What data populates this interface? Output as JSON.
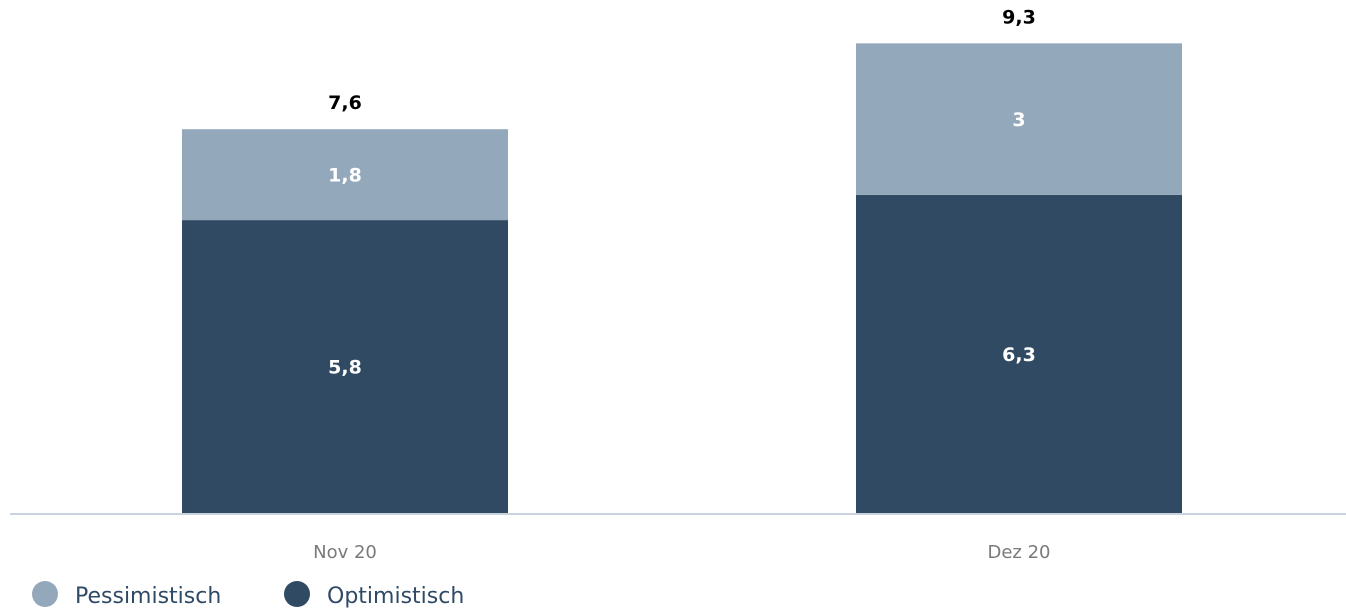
{
  "chart_data": {
    "type": "bar",
    "stacked": true,
    "categories": [
      "Nov 20",
      "Dez 20"
    ],
    "series": [
      {
        "name": "Optimistisch",
        "values": [
          "5,8",
          "6,3"
        ],
        "numeric": [
          5.8,
          6.3
        ],
        "color": "#304a64"
      },
      {
        "name": "Pessimistisch",
        "values": [
          "1,8",
          "3"
        ],
        "numeric": [
          1.8,
          3.0
        ],
        "color": "#94a8bb"
      }
    ],
    "totals": [
      "7,6",
      "9,3"
    ],
    "totals_numeric": [
      7.6,
      9.3
    ],
    "ylim": [
      0,
      10
    ],
    "grid": false,
    "legend": {
      "placement": "bottom-left",
      "items": [
        {
          "label": "Pessimistisch",
          "color": "#94a8bb"
        },
        {
          "label": "Optimistisch",
          "color": "#304a64"
        }
      ]
    },
    "axis_color": "#c8d3de"
  }
}
